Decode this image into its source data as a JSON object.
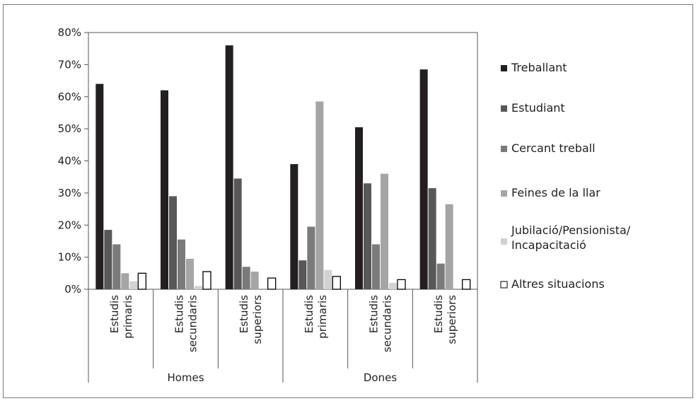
{
  "chart_data": {
    "type": "bar",
    "ylim": [
      0,
      80
    ],
    "y_ticks": [
      "0%",
      "10%",
      "20%",
      "30%",
      "40%",
      "50%",
      "60%",
      "70%",
      "80%"
    ],
    "grid": false,
    "legend_position": "right",
    "groups": [
      {
        "label": "Homes",
        "categories": [
          [
            "Estudis",
            "primaris"
          ],
          [
            "Estudis",
            "secundaris"
          ],
          [
            "Estudis",
            "superiors"
          ]
        ]
      },
      {
        "label": "Dones",
        "categories": [
          [
            "Estudis",
            "primaris"
          ],
          [
            "Estudis",
            "secundaris"
          ],
          [
            "Estudis",
            "superiors"
          ]
        ]
      }
    ],
    "series": [
      {
        "name": "Treballant",
        "color": "#231f20",
        "values": [
          64,
          62,
          76,
          39,
          50.5,
          68.5
        ]
      },
      {
        "name": "Estudiant",
        "color": "#585858",
        "values": [
          18.5,
          29,
          34.5,
          9,
          33,
          31.5
        ]
      },
      {
        "name": "Cercant treball",
        "color": "#7b7b7b",
        "values": [
          14,
          15.5,
          7,
          19.5,
          14,
          8
        ]
      },
      {
        "name": "Feines de la llar",
        "color": "#a5a5a5",
        "values": [
          5,
          9.5,
          5.5,
          58.5,
          36,
          26.5
        ]
      },
      {
        "name": "Jubilació/Pensionista/ Incapacitació",
        "color": "#d2d2d2",
        "values": [
          2.5,
          1,
          0,
          6,
          2,
          0
        ]
      },
      {
        "name": "Altres situacions",
        "color": "#ffffff",
        "values": [
          5,
          5.5,
          3.5,
          4,
          3,
          3
        ]
      }
    ]
  }
}
